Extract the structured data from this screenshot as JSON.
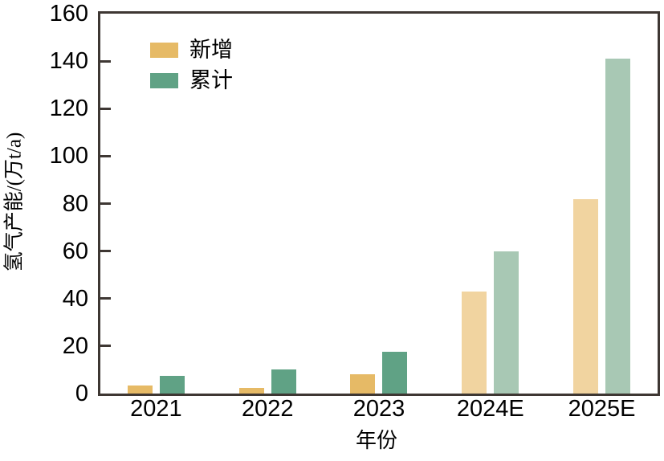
{
  "chart_data": {
    "type": "bar",
    "title": "",
    "xlabel": "年份",
    "ylabel": "氢气产能/(万t/a)",
    "categories": [
      "2021",
      "2022",
      "2023",
      "2024E",
      "2025E"
    ],
    "estimate_flags": [
      false,
      false,
      false,
      true,
      true
    ],
    "series": [
      {
        "name": "新增",
        "values": [
          3.5,
          2.5,
          8,
          43,
          82
        ],
        "color": "#e6ba66",
        "color_estimate": "#f1d4a0"
      },
      {
        "name": "累计",
        "values": [
          7.5,
          10,
          17.5,
          60,
          141
        ],
        "color": "#60a285",
        "color_estimate": "#a8c8b4"
      }
    ],
    "ylim": [
      0,
      160
    ],
    "yticks": [
      0,
      20,
      40,
      60,
      80,
      100,
      120,
      140,
      160
    ],
    "grid": false,
    "legend_position": "top-left-inside"
  },
  "colors": {
    "axis": "#3e3733",
    "text": "#000000",
    "background": "#ffffff"
  }
}
